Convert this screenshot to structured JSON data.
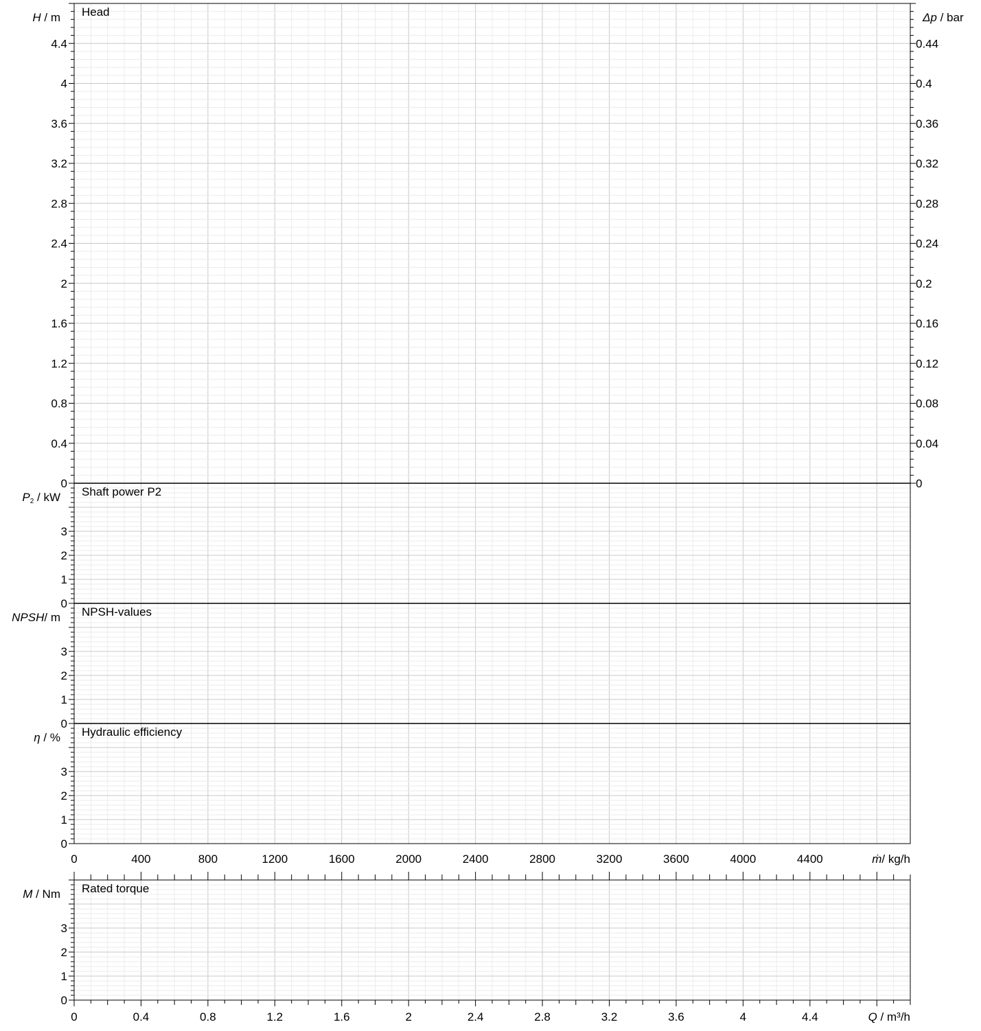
{
  "chart_data": [
    {
      "type": "line",
      "panel": "head",
      "title": "Head",
      "ylabel": {
        "symbol": "H",
        "unit": " / m"
      },
      "y2label": {
        "symbol": "Δp",
        "unit": " / bar"
      },
      "ylim": [
        0,
        4.8
      ],
      "yticks": [
        "0",
        "0.4",
        "0.8",
        "1.2",
        "1.6",
        "2",
        "2.4",
        "2.8",
        "3.2",
        "3.6",
        "4",
        "4.4"
      ],
      "y2lim": [
        0,
        0.48
      ],
      "y2ticks": [
        "0",
        "0.04",
        "0.08",
        "0.12",
        "0.16",
        "0.2",
        "0.24",
        "0.28",
        "0.32",
        "0.36",
        "0.4",
        "0.44"
      ],
      "series": []
    },
    {
      "type": "line",
      "panel": "power",
      "title": "Shaft power P2",
      "ylabel": {
        "symbol": "P",
        "sub": "2",
        "unit": " / kW"
      },
      "ylim": [
        0,
        5
      ],
      "yticks": [
        "0",
        "1",
        "2",
        "3"
      ],
      "series": []
    },
    {
      "type": "line",
      "panel": "npsh",
      "title": "NPSH-values",
      "ylabel": {
        "symbol": "NPSH",
        "unit": "/ m"
      },
      "ylim": [
        0,
        5
      ],
      "yticks": [
        "0",
        "1",
        "2",
        "3"
      ],
      "series": []
    },
    {
      "type": "line",
      "panel": "efficiency",
      "title": "Hydraulic efficiency",
      "ylabel": {
        "symbol": "η",
        "unit": " / %"
      },
      "ylim": [
        0,
        5
      ],
      "yticks": [
        "0",
        "1",
        "2",
        "3"
      ],
      "series": []
    },
    {
      "type": "line",
      "panel": "torque",
      "title": "Rated torque",
      "ylabel": {
        "symbol": "M",
        "unit": " / Nm"
      },
      "ylim": [
        0,
        5
      ],
      "yticks": [
        "0",
        "1",
        "2",
        "3"
      ],
      "series": []
    }
  ],
  "mass_flow_axis": {
    "label": {
      "symbol": "ṁ",
      "unit": "/ kg/h"
    },
    "xlim": [
      0,
      5000
    ],
    "ticks": [
      "0",
      "400",
      "800",
      "1200",
      "1600",
      "2000",
      "2400",
      "2800",
      "3200",
      "3600",
      "4000",
      "4400"
    ]
  },
  "flow_axis": {
    "label": {
      "symbol": "Q",
      "unit": " / m³/h"
    },
    "xlim": [
      0,
      5
    ],
    "ticks": [
      "0",
      "0.4",
      "0.8",
      "1.2",
      "1.6",
      "2",
      "2.4",
      "2.8",
      "3.2",
      "3.6",
      "4",
      "4.4"
    ]
  },
  "colors": {
    "axis": "#000000",
    "major_grid": "#c8c8c8",
    "minor_grid": "#ebebeb"
  }
}
